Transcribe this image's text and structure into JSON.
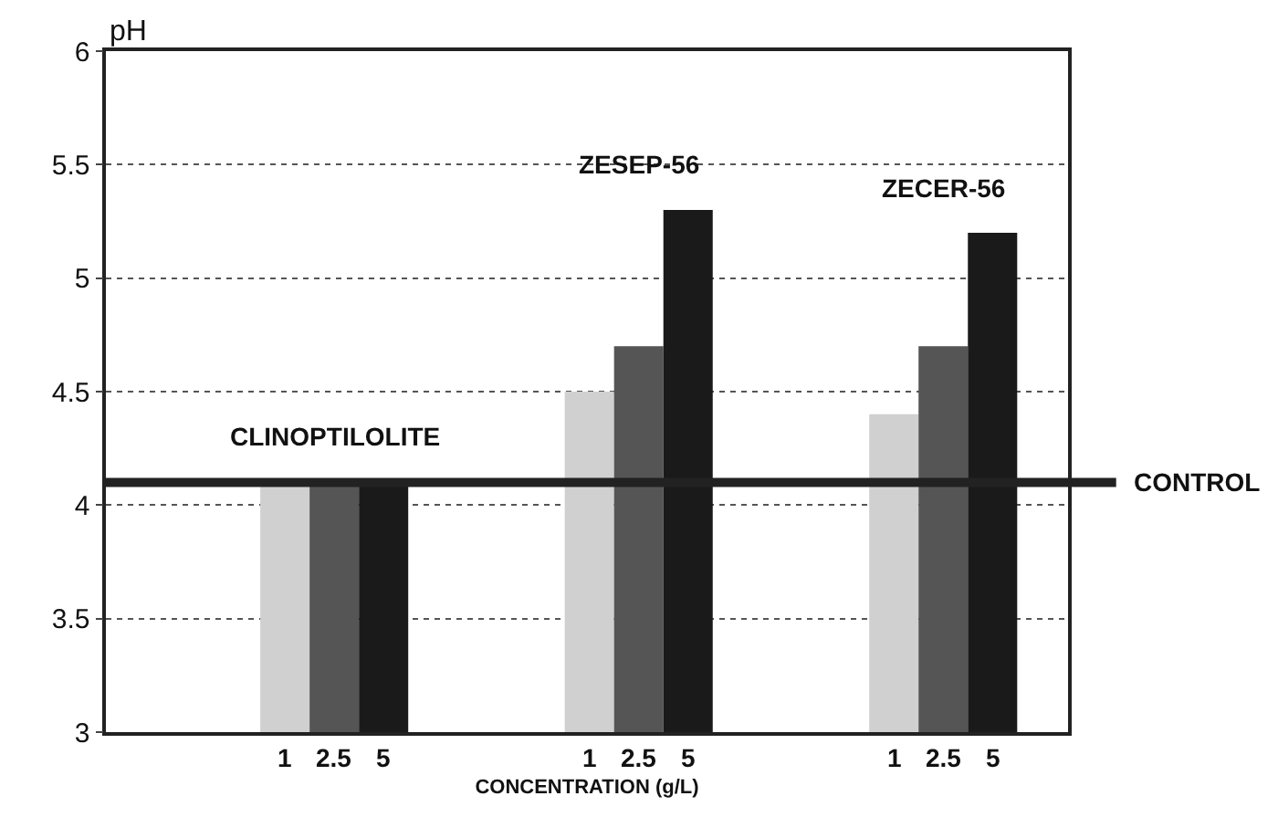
{
  "chart_data": {
    "type": "bar",
    "ylabel": "pH",
    "xlabel": "CONCENTRATION (g/L)",
    "categories": [
      null,
      null,
      null
    ],
    "series": [
      {
        "name": "1",
        "color": "#d0d0d0",
        "values": [
          4.1,
          4.5,
          4.4
        ]
      },
      {
        "name": "2.5",
        "color": "#555555",
        "values": [
          4.1,
          4.7,
          4.7
        ]
      },
      {
        "name": "5",
        "color": "#1a1a1a",
        "values": [
          4.1,
          5.3,
          5.2
        ]
      }
    ],
    "annotations": [
      "CLINOPTILOLITE",
      "ZESEP-56",
      "ZECER-56"
    ],
    "ref_lines": [
      {
        "axis": "y",
        "value": 4.1,
        "label": "CONTROL",
        "color": "#222222"
      }
    ],
    "ylim": [
      3,
      6
    ],
    "yticks": [
      3,
      3.5,
      4,
      4.5,
      5,
      5.5,
      6
    ],
    "grid": "y",
    "legend": false
  }
}
